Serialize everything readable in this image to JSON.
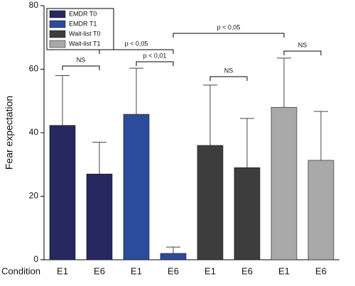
{
  "chart_data": {
    "type": "bar",
    "y_label": "Fear expectation",
    "x_label": "Condition",
    "categories": [
      "E1",
      "E6",
      "E1",
      "E6",
      "E1",
      "E6",
      "E1",
      "E6"
    ],
    "series": [
      {
        "name": "EMDR T0",
        "color": "#27275f",
        "values": [
          42.3,
          27,
          null,
          null,
          null,
          null,
          null,
          null
        ],
        "errors": [
          15.7,
          10,
          null,
          null,
          null,
          null,
          null,
          null
        ]
      },
      {
        "name": "EMDR T1",
        "color": "#2c4b9b",
        "values": [
          null,
          null,
          45.8,
          2,
          null,
          null,
          null,
          null
        ],
        "errors": [
          null,
          null,
          14.5,
          2,
          null,
          null,
          null,
          null
        ]
      },
      {
        "name": "Wait-list T0",
        "color": "#3d3d3d",
        "values": [
          null,
          null,
          null,
          null,
          36,
          29,
          null,
          null
        ],
        "errors": [
          null,
          null,
          null,
          null,
          19,
          15.5,
          null,
          null
        ]
      },
      {
        "name": "Wait-list T1",
        "color": "#a9a9a9",
        "values": [
          null,
          null,
          null,
          null,
          null,
          null,
          48,
          31.3
        ],
        "errors": [
          null,
          null,
          null,
          null,
          null,
          null,
          15.5,
          15.4
        ]
      }
    ],
    "annotations": [
      "NS",
      "p < 0,05",
      "p < 0,01",
      "NS",
      "p < 0,05",
      "NS"
    ],
    "ylim": [
      0,
      80
    ],
    "yticks": [
      0,
      20,
      40,
      60,
      80
    ],
    "legend": "upper-left"
  }
}
